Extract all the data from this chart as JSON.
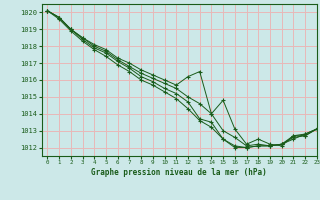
{
  "title": "Graphe pression niveau de la mer (hPa)",
  "xlim": [
    -0.5,
    23
  ],
  "ylim": [
    1011.5,
    1020.5
  ],
  "yticks": [
    1012,
    1013,
    1014,
    1015,
    1016,
    1017,
    1018,
    1019,
    1020
  ],
  "xticks": [
    0,
    1,
    2,
    3,
    4,
    5,
    6,
    7,
    8,
    9,
    10,
    11,
    12,
    13,
    14,
    15,
    16,
    17,
    18,
    19,
    20,
    21,
    22,
    23
  ],
  "bg_color": "#cce8e8",
  "grid_color": "#e8b8b8",
  "line_color": "#1a5c1a",
  "marker": "+",
  "curves": [
    [
      1020.1,
      1019.7,
      1019.0,
      1018.5,
      1018.1,
      1017.8,
      1017.3,
      1017.0,
      1016.6,
      1016.3,
      1016.0,
      1015.7,
      1016.2,
      1016.5,
      1014.0,
      1014.8,
      1013.1,
      1012.2,
      1012.5,
      1012.2,
      1012.1,
      1012.7,
      1012.7,
      1013.1
    ],
    [
      1020.1,
      1019.7,
      1019.0,
      1018.5,
      1018.0,
      1017.7,
      1017.2,
      1016.8,
      1016.4,
      1016.1,
      1015.8,
      1015.5,
      1015.0,
      1014.6,
      1014.0,
      1013.0,
      1012.6,
      1012.1,
      1012.2,
      1012.1,
      1012.2,
      1012.6,
      1012.7,
      1013.1
    ],
    [
      1020.1,
      1019.7,
      1019.0,
      1018.4,
      1017.9,
      1017.6,
      1017.1,
      1016.7,
      1016.2,
      1015.9,
      1015.5,
      1015.2,
      1014.7,
      1013.7,
      1013.5,
      1012.5,
      1012.1,
      1012.0,
      1012.1,
      1012.1,
      1012.2,
      1012.7,
      1012.8,
      1013.1
    ],
    [
      1020.1,
      1019.6,
      1018.9,
      1018.3,
      1017.8,
      1017.4,
      1016.9,
      1016.5,
      1016.0,
      1015.7,
      1015.3,
      1014.9,
      1014.3,
      1013.6,
      1013.2,
      1012.5,
      1012.0,
      1012.0,
      1012.1,
      1012.1,
      1012.2,
      1012.5,
      1012.8,
      1013.1
    ]
  ]
}
